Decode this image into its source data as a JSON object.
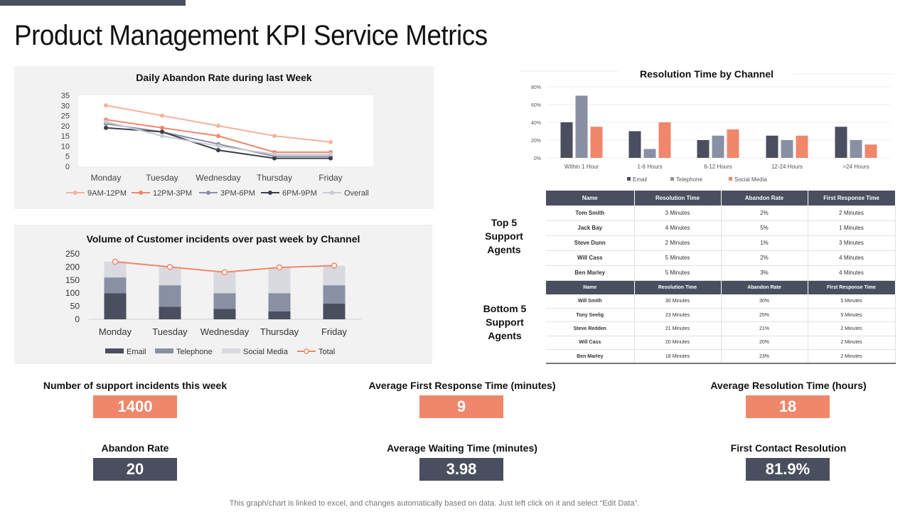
{
  "page_title": "Product Management KPI Service Metrics",
  "colors": {
    "dark": "#4a4e5e",
    "orange": "#f0876a",
    "mid_gray": "#8a90a3",
    "light_gray": "#d9dae0",
    "light_orange": "#f4b29c"
  },
  "chart_data": [
    {
      "id": "abandon",
      "type": "line",
      "title": "Daily Abandon Rate during last Week",
      "categories": [
        "Monday",
        "Tuesday",
        "Wednesday",
        "Thursday",
        "Friday"
      ],
      "ylim": [
        0,
        35
      ],
      "yticks": [
        0,
        5,
        10,
        15,
        20,
        25,
        30,
        35
      ],
      "legend_position": "bottom",
      "series": [
        {
          "name": "9AM-12PM",
          "color": "#f4b29c",
          "values": [
            30,
            25,
            20,
            15,
            12
          ]
        },
        {
          "name": "12PM-3PM",
          "color": "#f0876a",
          "values": [
            23,
            19,
            15,
            7,
            7
          ]
        },
        {
          "name": "3PM-6PM",
          "color": "#8a90a3",
          "values": [
            21,
            17,
            11,
            5,
            5
          ]
        },
        {
          "name": "6PM-9PM",
          "color": "#3a3e4e",
          "values": [
            19,
            17,
            8,
            4,
            4
          ]
        },
        {
          "name": "Overall",
          "color": "#c9cad5",
          "values": [
            22,
            15,
            10,
            6,
            6
          ]
        }
      ]
    },
    {
      "id": "incidents",
      "type": "bar",
      "stacked": true,
      "title": "Volume of Customer incidents over past week by Channel",
      "categories": [
        "Monday",
        "Tuesday",
        "Wednesday",
        "Thursday",
        "Friday"
      ],
      "ylim": [
        0,
        250
      ],
      "yticks": [
        0,
        50,
        100,
        150,
        200,
        250
      ],
      "legend_position": "bottom",
      "series": [
        {
          "name": "Email",
          "color": "#4a4e5e",
          "values": [
            100,
            48,
            40,
            30,
            60
          ]
        },
        {
          "name": "Telephone",
          "color": "#8a90a3",
          "values": [
            60,
            82,
            60,
            70,
            70
          ]
        },
        {
          "name": "Social Media",
          "color": "#d9dae0",
          "values": [
            60,
            70,
            80,
            98,
            75
          ]
        }
      ],
      "line": {
        "name": "Total",
        "color": "#f0876a",
        "values": [
          220,
          200,
          180,
          198,
          205
        ]
      }
    },
    {
      "id": "resolution",
      "type": "bar",
      "title": "Resolution Time by Channel",
      "categories": [
        "Within 1 Hour",
        "1-6 Hours",
        "6-12 Hours",
        "12-24 Hours",
        ">24 Hours"
      ],
      "ylim": [
        0,
        80
      ],
      "yticks": [
        0,
        20,
        40,
        60,
        80
      ],
      "ytick_labels": [
        "0%",
        "20%",
        "40%",
        "60%",
        "80%"
      ],
      "legend_position": "bottom",
      "series": [
        {
          "name": "Email",
          "color": "#4a4e5e",
          "values": [
            40,
            30,
            20,
            25,
            35
          ]
        },
        {
          "name": "Telephone",
          "color": "#8a90a3",
          "values": [
            70,
            10,
            25,
            20,
            20
          ]
        },
        {
          "name": "Social Media",
          "color": "#f0876a",
          "values": [
            35,
            40,
            32,
            25,
            15
          ]
        }
      ]
    }
  ],
  "top5": {
    "label": "Top 5 Support Agents",
    "headers": [
      "Name",
      "Resolution Time",
      "Abandon Rate",
      "First Response Time"
    ],
    "rows": [
      [
        "Tom Smith",
        "3 Minutes",
        "2%",
        "2 Minutes"
      ],
      [
        "Jack Bay",
        "4 Minutes",
        "5%",
        "1 Minutes"
      ],
      [
        "Steve Dunn",
        "2 Minutes",
        "1%",
        "3 Minutes"
      ],
      [
        "Will Cass",
        "5 Minutes",
        "2%",
        "4 Minutes"
      ],
      [
        "Ben Marley",
        "5 Minutes",
        "3%",
        "4 Minutes"
      ]
    ]
  },
  "bottom5": {
    "label": "Bottom 5 Support Agents",
    "headers": [
      "Name",
      "Resolution Time",
      "Abandon Rate",
      "First Response Time"
    ],
    "rows": [
      [
        "Will Smith",
        "30 Minutes",
        "30%",
        "5 Minutes"
      ],
      [
        "Tony Seelig",
        "23 Minutes",
        "25%",
        "5 Minutes"
      ],
      [
        "Steve Redden",
        "21 Minutes",
        "21%",
        "2 Minutes"
      ],
      [
        "Will Cass",
        "20 Minutes",
        "20%",
        "2 Minutes"
      ],
      [
        "Ben Marley",
        "18 Minutes",
        "23%",
        "2 Minutes"
      ]
    ]
  },
  "kpis": [
    {
      "label": "Number of support incidents this week",
      "value": "1400"
    },
    {
      "label": "Average First Response Time (minutes)",
      "value": "9"
    },
    {
      "label": "Average Resolution Time (hours)",
      "value": "18"
    },
    {
      "label": "Abandon Rate",
      "value": "20"
    },
    {
      "label": "Average Waiting Time (minutes)",
      "value": "3.98"
    },
    {
      "label": "First Contact Resolution",
      "value": "81.9%"
    }
  ],
  "footer": "This graph/chart is linked to excel, and changes automatically based on data. Just left click on it and select “Edit Data”."
}
